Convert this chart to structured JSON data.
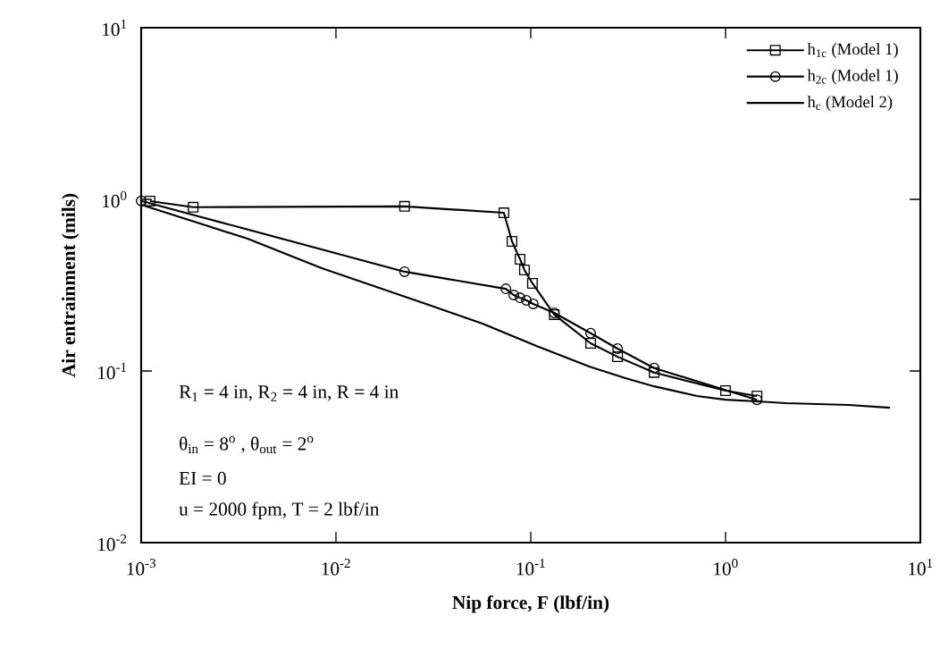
{
  "chart_data": {
    "type": "line",
    "xlabel": "Nip force, F (lbf/in)",
    "ylabel": "Air entrainment (mils)",
    "log": "xy",
    "xlim": [
      0.001,
      10
    ],
    "ylim": [
      0.01,
      10
    ],
    "xticks": [
      {
        "value": 0.001,
        "label": "10$^{-3}$"
      },
      {
        "value": 0.01,
        "label": "10$^{-2}$"
      },
      {
        "value": 0.1,
        "label": "10$^{-1}$"
      },
      {
        "value": 1,
        "label": "10$^{0}$"
      },
      {
        "value": 10,
        "label": "10$^{1}$"
      }
    ],
    "yticks": [
      {
        "value": 0.01,
        "label": "10$^{-2}$"
      },
      {
        "value": 0.1,
        "label": "10$^{-1}$"
      },
      {
        "value": 1,
        "label": "10$^{0}$"
      },
      {
        "value": 10,
        "label": "10$^{1}$"
      }
    ],
    "grid": false,
    "legend": "top right",
    "line_style": "solid",
    "series": [
      {
        "name": "h$_{1c}$ (Model 1)",
        "color": "#000000",
        "marker": "square",
        "x": [
          0.00111,
          0.00185,
          0.0225,
          0.0728,
          0.0801,
          0.0881,
          0.0928,
          0.102,
          0.132,
          0.203,
          0.279,
          0.43,
          1.0,
          1.45
        ],
        "values": [
          0.977,
          0.9,
          0.91,
          0.835,
          0.569,
          0.448,
          0.388,
          0.324,
          0.213,
          0.145,
          0.121,
          0.098,
          0.0768,
          0.0715
        ]
      },
      {
        "name": "h$_{2c}$ (Model 1)",
        "color": "#000000",
        "marker": "circle",
        "x": [
          0.001,
          0.0225,
          0.0745,
          0.0818,
          0.0881,
          0.095,
          0.103,
          0.132,
          0.203,
          0.279,
          0.43,
          1.45
        ],
        "values": [
          0.98,
          0.379,
          0.301,
          0.277,
          0.267,
          0.258,
          0.246,
          0.218,
          0.166,
          0.135,
          0.104,
          0.068
        ]
      },
      {
        "name": "h$_{c}$ (Model 2)",
        "color": "#000000",
        "marker": "none",
        "x": [
          0.001,
          0.00352,
          0.00845,
          0.029,
          0.0565,
          0.107,
          0.201,
          0.306,
          0.43,
          0.713,
          1.0,
          1.45,
          2.05,
          4.3,
          6.98
        ],
        "values": [
          0.93,
          0.59,
          0.397,
          0.246,
          0.189,
          0.14,
          0.106,
          0.0908,
          0.0814,
          0.0715,
          0.068,
          0.0665,
          0.0649,
          0.0634,
          0.0611
        ]
      }
    ],
    "annotations": [
      "R$_{1}$ = 4 in, R$_{2}$ = 4 in, R = 4 in",
      "θ$_{in}$ = 8$^{o}$ , θ$_{out}$ = 2$^{o}$",
      "EI = 0",
      "u = 2000 fpm, T = 2 lbf/in"
    ]
  }
}
